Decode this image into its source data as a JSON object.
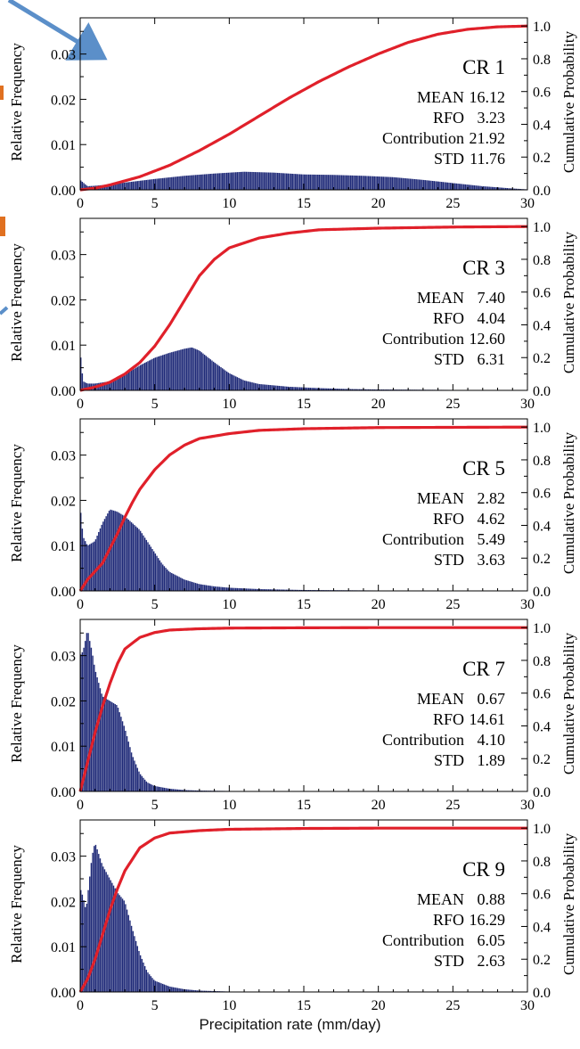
{
  "figure": {
    "x_caption": "Precipitation rate (mm/day)",
    "colors": {
      "bars": "#1f2a78",
      "cdf": "#e0202a",
      "arrow": "#5b8fc9",
      "cut_text": "#e07020"
    }
  },
  "chart_data": [
    {
      "type": "bar",
      "title": "CR 1",
      "ylabel": "Relative Frequency",
      "y2label": "Cumulative Probability",
      "xlim": [
        0,
        30
      ],
      "ylim": [
        0,
        0.038
      ],
      "y2lim": [
        0,
        1.05
      ],
      "xticks": [
        0,
        5,
        10,
        15,
        20,
        25,
        30
      ],
      "yticks": [
        "0.00",
        "0.01",
        "0.02",
        "0.03"
      ],
      "y2ticks": [
        "0.0",
        "0.2",
        "0.4",
        "0.6",
        "0.8",
        "1.0"
      ],
      "stats": [
        [
          "MEAN",
          "16.12"
        ],
        [
          "RFO",
          "3.23"
        ],
        [
          "Contribution",
          "21.92"
        ],
        [
          "STD",
          "11.76"
        ]
      ],
      "hist_x": [
        0,
        0.5,
        1,
        2,
        3,
        5,
        7,
        9,
        11,
        13,
        15,
        17,
        19,
        21,
        23,
        25,
        27,
        29,
        30
      ],
      "hist_y": [
        0.0022,
        0.0008,
        0.0009,
        0.0012,
        0.0016,
        0.0024,
        0.0031,
        0.0036,
        0.004,
        0.0038,
        0.0034,
        0.0033,
        0.0031,
        0.0028,
        0.0022,
        0.0015,
        0.0008,
        0.0003,
        0.0001
      ],
      "cdf_x": [
        0,
        1,
        2,
        4,
        6,
        8,
        10,
        12,
        14,
        16,
        18,
        20,
        22,
        24,
        26,
        28,
        30
      ],
      "cdf_y": [
        0.0,
        0.01,
        0.03,
        0.08,
        0.15,
        0.24,
        0.34,
        0.45,
        0.56,
        0.66,
        0.75,
        0.83,
        0.9,
        0.95,
        0.98,
        0.995,
        1.0
      ]
    },
    {
      "type": "bar",
      "title": "CR 3",
      "ylabel": "Relative Frequency",
      "y2label": "Cumulative Probability",
      "xlim": [
        0,
        30
      ],
      "ylim": [
        0,
        0.038
      ],
      "y2lim": [
        0,
        1.05
      ],
      "xticks": [
        0,
        5,
        10,
        15,
        20,
        25,
        30
      ],
      "yticks": [
        "0.00",
        "0.01",
        "0.02",
        "0.03"
      ],
      "y2ticks": [
        "0.0",
        "0.2",
        "0.4",
        "0.6",
        "0.8",
        "1.0"
      ],
      "stats": [
        [
          "MEAN",
          "7.40"
        ],
        [
          "RFO",
          "4.04"
        ],
        [
          "Contribution",
          "12.60"
        ],
        [
          "STD",
          "6.31"
        ]
      ],
      "hist_x": [
        0,
        0.2,
        0.5,
        1,
        2,
        3,
        4,
        5,
        6,
        7,
        7.5,
        8,
        9,
        10,
        11,
        12,
        14,
        16,
        18,
        20,
        25,
        30
      ],
      "hist_y": [
        0.009,
        0.002,
        0.0015,
        0.0015,
        0.002,
        0.0035,
        0.0055,
        0.0072,
        0.0083,
        0.0092,
        0.0095,
        0.0088,
        0.0062,
        0.0038,
        0.0022,
        0.0014,
        0.0008,
        0.0005,
        0.0003,
        0.0002,
        0.0001,
        0.0
      ],
      "cdf_x": [
        0,
        1,
        2,
        3,
        4,
        5,
        6,
        7,
        8,
        9,
        10,
        12,
        14,
        16,
        20,
        25,
        30
      ],
      "cdf_y": [
        0.0,
        0.02,
        0.05,
        0.1,
        0.17,
        0.27,
        0.4,
        0.55,
        0.7,
        0.8,
        0.87,
        0.93,
        0.96,
        0.98,
        0.99,
        0.997,
        1.0
      ]
    },
    {
      "type": "bar",
      "title": "CR 5",
      "ylabel": "Relative Frequency",
      "y2label": "Cumulative Probability",
      "xlim": [
        0,
        30
      ],
      "ylim": [
        0,
        0.038
      ],
      "y2lim": [
        0,
        1.05
      ],
      "xticks": [
        0,
        5,
        10,
        15,
        20,
        25,
        30
      ],
      "yticks": [
        "0.00",
        "0.01",
        "0.02",
        "0.03"
      ],
      "y2ticks": [
        "0.0",
        "0.2",
        "0.4",
        "0.6",
        "0.8",
        "1.0"
      ],
      "stats": [
        [
          "MEAN",
          "2.82"
        ],
        [
          "RFO",
          "4.62"
        ],
        [
          "Contribution",
          "5.49"
        ],
        [
          "STD",
          "3.63"
        ]
      ],
      "hist_x": [
        0,
        0.2,
        0.5,
        1,
        1.5,
        2,
        2.5,
        3,
        3.5,
        4,
        4.5,
        5,
        5.5,
        6,
        7,
        8,
        9,
        10,
        12,
        15,
        20,
        30
      ],
      "hist_y": [
        0.019,
        0.012,
        0.01,
        0.011,
        0.015,
        0.018,
        0.0175,
        0.0165,
        0.015,
        0.0135,
        0.011,
        0.0085,
        0.006,
        0.0042,
        0.0025,
        0.0015,
        0.001,
        0.0007,
        0.0004,
        0.0002,
        0.0001,
        0.0
      ],
      "cdf_x": [
        0,
        0.5,
        1,
        1.5,
        2,
        2.5,
        3,
        3.5,
        4,
        5,
        6,
        7,
        8,
        10,
        12,
        15,
        20,
        30
      ],
      "cdf_y": [
        0.0,
        0.07,
        0.12,
        0.17,
        0.26,
        0.35,
        0.45,
        0.54,
        0.62,
        0.74,
        0.83,
        0.89,
        0.93,
        0.96,
        0.98,
        0.99,
        0.997,
        1.0
      ]
    },
    {
      "type": "bar",
      "title": "CR 7",
      "ylabel": "Relative Frequency",
      "y2label": "Cumulative Probability",
      "xlim": [
        0,
        30
      ],
      "ylim": [
        0,
        0.038
      ],
      "y2lim": [
        0,
        1.05
      ],
      "xticks": [
        0,
        5,
        10,
        15,
        20,
        25,
        30
      ],
      "yticks": [
        "0.00",
        "0.01",
        "0.02",
        "0.03"
      ],
      "y2ticks": [
        "0.0",
        "0.2",
        "0.4",
        "0.6",
        "0.8",
        "1.0"
      ],
      "stats": [
        [
          "MEAN",
          "0.67"
        ],
        [
          "RFO",
          "14.61"
        ],
        [
          "Contribution",
          "4.10"
        ],
        [
          "STD",
          "1.89"
        ]
      ],
      "hist_x": [
        0,
        0.2,
        0.4,
        0.5,
        0.6,
        0.8,
        1,
        1.5,
        2,
        2.5,
        3,
        3.5,
        4,
        4.5,
        5,
        6,
        7,
        8,
        10,
        15,
        30
      ],
      "hist_y": [
        0.03,
        0.031,
        0.034,
        0.036,
        0.034,
        0.031,
        0.027,
        0.021,
        0.02,
        0.019,
        0.014,
        0.008,
        0.004,
        0.002,
        0.0012,
        0.0006,
        0.0003,
        0.0002,
        0.0001,
        0.0,
        0.0
      ],
      "cdf_x": [
        0,
        0.5,
        1,
        1.5,
        2,
        2.5,
        3,
        4,
        5,
        6,
        8,
        10,
        15,
        20,
        30
      ],
      "cdf_y": [
        0.0,
        0.18,
        0.36,
        0.52,
        0.66,
        0.78,
        0.87,
        0.94,
        0.97,
        0.985,
        0.993,
        0.997,
        0.999,
        1.0,
        1.0
      ]
    },
    {
      "type": "bar",
      "title": "CR 9",
      "ylabel": "Relative Frequency",
      "y2label": "Cumulative Probability",
      "xlim": [
        0,
        30
      ],
      "ylim": [
        0,
        0.038
      ],
      "y2lim": [
        0,
        1.05
      ],
      "xticks": [
        0,
        5,
        10,
        15,
        20,
        25,
        30
      ],
      "yticks": [
        "0.00",
        "0.01",
        "0.02",
        "0.03"
      ],
      "y2ticks": [
        "0.0",
        "0.2",
        "0.4",
        "0.6",
        "0.8",
        "1.0"
      ],
      "stats": [
        [
          "MEAN",
          "0.88"
        ],
        [
          "RFO",
          "16.29"
        ],
        [
          "Contribution",
          "6.05"
        ],
        [
          "STD",
          "2.63"
        ]
      ],
      "hist_x": [
        0,
        0.2,
        0.4,
        0.6,
        0.8,
        1,
        1.2,
        1.5,
        2,
        2.5,
        3,
        3.5,
        4,
        4.5,
        5,
        6,
        7,
        8,
        10,
        15,
        30
      ],
      "hist_y": [
        0.023,
        0.021,
        0.018,
        0.024,
        0.03,
        0.033,
        0.031,
        0.028,
        0.025,
        0.022,
        0.02,
        0.014,
        0.0085,
        0.0045,
        0.0025,
        0.0012,
        0.0006,
        0.0003,
        0.0001,
        0.0,
        0.0
      ],
      "cdf_x": [
        0,
        0.5,
        1,
        1.5,
        2,
        2.5,
        3,
        4,
        5,
        6,
        8,
        10,
        15,
        20,
        30
      ],
      "cdf_y": [
        0.0,
        0.08,
        0.2,
        0.35,
        0.5,
        0.63,
        0.74,
        0.88,
        0.94,
        0.97,
        0.985,
        0.993,
        0.998,
        1.0,
        1.0
      ]
    }
  ]
}
